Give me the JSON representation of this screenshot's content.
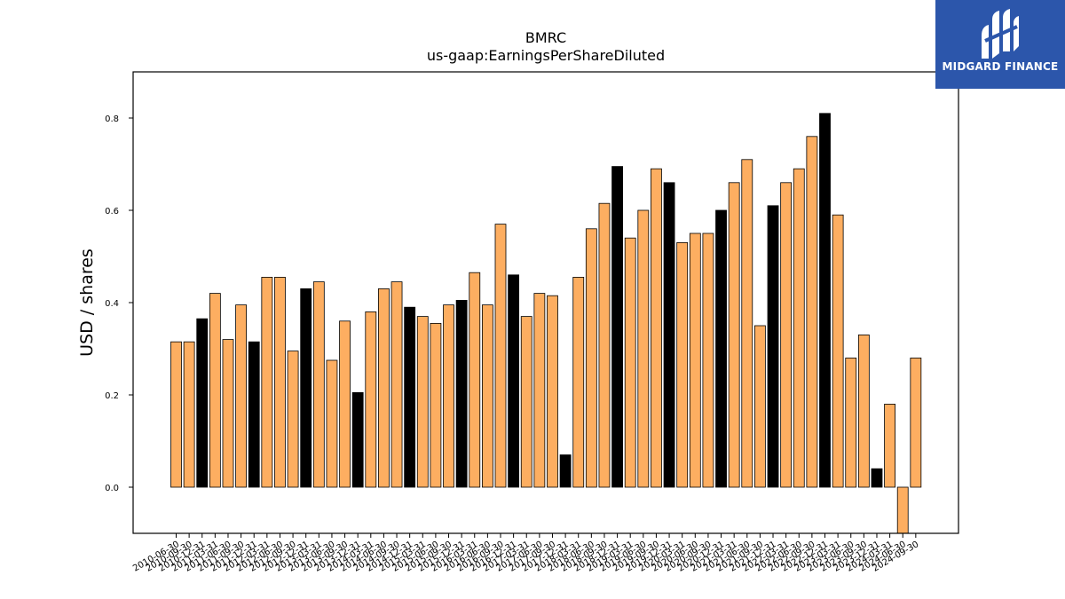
{
  "chart_data": {
    "type": "bar",
    "title": "BMRC",
    "subtitle": "us-gaap:EarningsPerShareDiluted",
    "xlabel": "",
    "ylabel": "USD / shares",
    "ylim": [
      -0.1,
      0.9
    ],
    "yticks": [
      "0.0",
      "0.2",
      "0.4",
      "0.6",
      "0.8"
    ],
    "grid": false,
    "legend": "none",
    "colors": {
      "default": "#fdae61",
      "highlight": "#000000",
      "edge": "#000000"
    },
    "categories": [
      "2010-06-30",
      "2010-09-30",
      "2010-12-31",
      "2011-03-31",
      "2011-06-30",
      "2011-09-30",
      "2011-12-31",
      "2012-03-31",
      "2012-06-30",
      "2012-09-30",
      "2012-12-31",
      "2013-03-31",
      "2013-06-30",
      "2013-09-30",
      "2013-12-31",
      "2014-03-31",
      "2014-06-30",
      "2014-09-30",
      "2014-12-31",
      "2015-03-31",
      "2015-06-30",
      "2015-09-30",
      "2015-12-31",
      "2016-03-31",
      "2016-06-30",
      "2016-09-30",
      "2016-12-31",
      "2017-03-31",
      "2017-06-30",
      "2017-09-30",
      "2017-12-31",
      "2018-03-31",
      "2018-06-30",
      "2018-09-30",
      "2018-12-31",
      "2019-03-31",
      "2019-06-30",
      "2019-09-30",
      "2019-12-31",
      "2020-03-31",
      "2020-06-30",
      "2020-09-30",
      "2020-12-31",
      "2021-03-31",
      "2021-06-30",
      "2021-09-30",
      "2021-12-31",
      "2022-03-31",
      "2022-06-30",
      "2022-09-30",
      "2022-12-31",
      "2023-03-31",
      "2023-06-30",
      "2023-09-30",
      "2023-12-31",
      "2024-03-31",
      "2024-06-30",
      "2024-09-30"
    ],
    "values": [
      0.315,
      0.315,
      0.365,
      0.42,
      0.32,
      0.395,
      0.315,
      0.455,
      0.455,
      0.295,
      0.43,
      0.445,
      0.275,
      0.36,
      0.205,
      0.38,
      0.43,
      0.445,
      0.39,
      0.37,
      0.355,
      0.395,
      0.405,
      0.465,
      0.395,
      0.57,
      0.46,
      0.37,
      0.42,
      0.415,
      0.07,
      0.455,
      0.56,
      0.615,
      0.695,
      0.54,
      0.6,
      0.69,
      0.66,
      0.53,
      0.55,
      0.55,
      0.6,
      0.66,
      0.71,
      0.35,
      0.61,
      0.66,
      0.69,
      0.76,
      0.81,
      0.59,
      0.28,
      0.33,
      0.04,
      0.18,
      -0.12,
      0.28
    ],
    "highlight": [
      2,
      6,
      10,
      14,
      18,
      22,
      26,
      30,
      34,
      38,
      42,
      46,
      50,
      54
    ]
  },
  "logo": {
    "text": "MIDGARD FINANCE",
    "icon": "midgard-logo-icon",
    "background": "#2c56ab"
  }
}
